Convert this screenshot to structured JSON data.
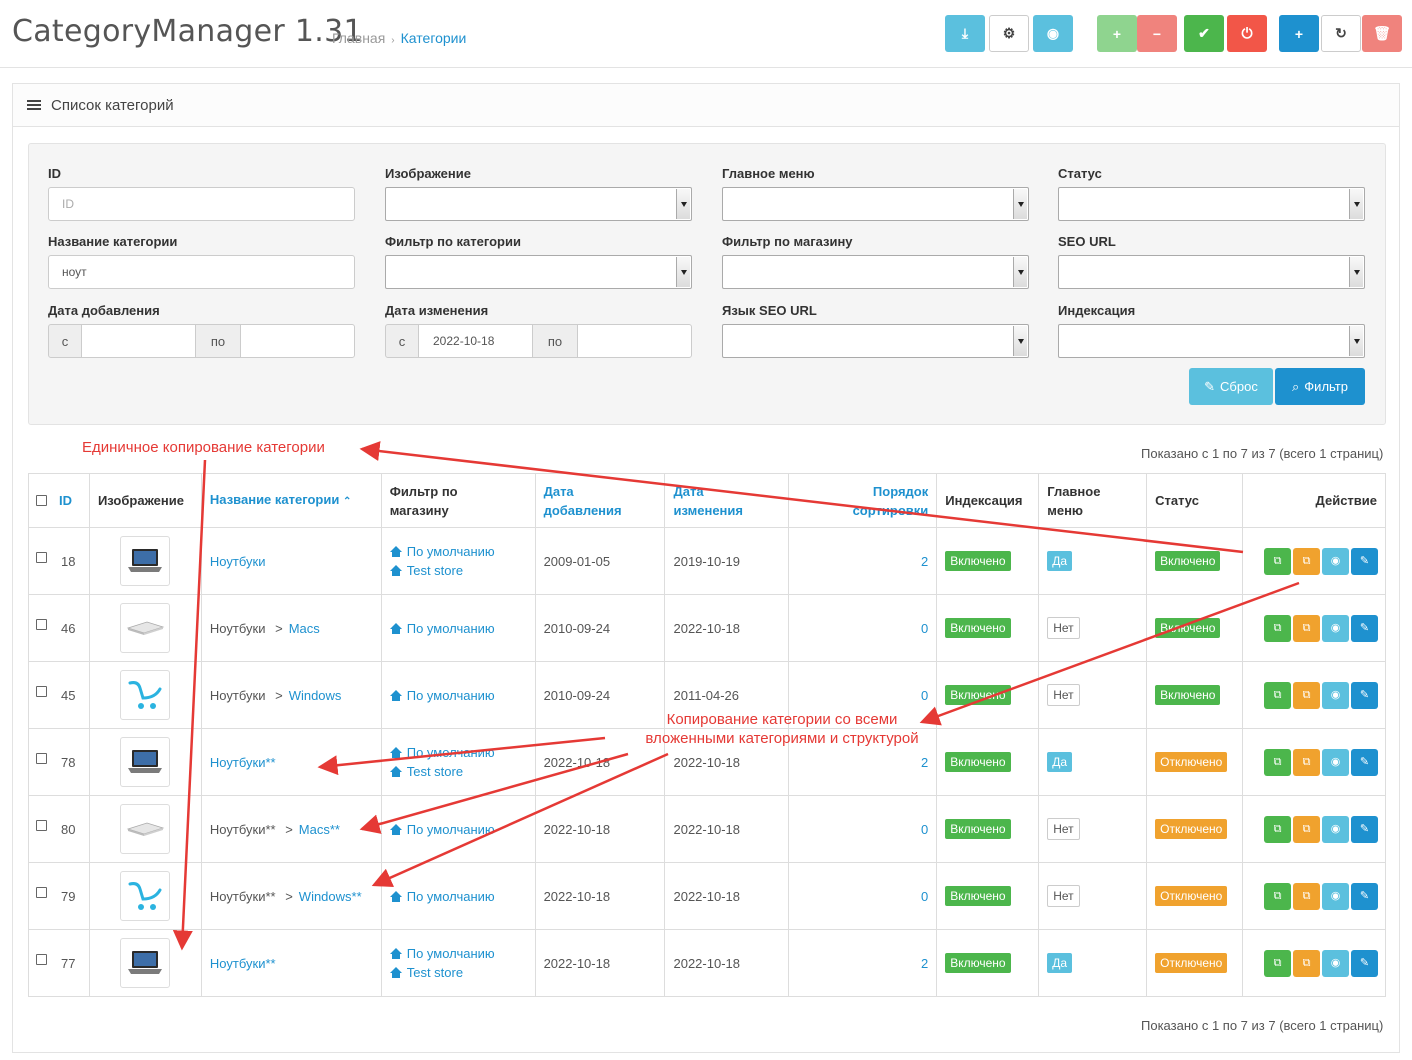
{
  "header": {
    "title": "CategoryManager 1.31",
    "breadcrumb": [
      "Главная",
      "Категории"
    ]
  },
  "toolbar": [
    {
      "name": "export-button",
      "icon": "download-icon",
      "glyph": "⤓",
      "color": "#5bc0de"
    },
    {
      "name": "settings-button",
      "icon": "cogs-icon",
      "glyph": "⚙",
      "color": "#ffffff"
    },
    {
      "name": "view-button",
      "icon": "eye-icon",
      "glyph": "◉",
      "color": "#5bc0de"
    },
    {
      "name": "enable-button",
      "icon": "plus-icon",
      "glyph": "+",
      "color": "#8fd48f"
    },
    {
      "name": "disable-button",
      "icon": "minus-icon",
      "glyph": "−",
      "color": "#f0837d"
    },
    {
      "name": "approve-button",
      "icon": "check-icon",
      "glyph": "✔",
      "color": "#4cb64c"
    },
    {
      "name": "power-button",
      "icon": "power-icon",
      "glyph": "⏻",
      "color": "#f25648"
    },
    {
      "name": "add-button",
      "icon": "plus-icon",
      "glyph": "+",
      "color": "#1e91cf"
    },
    {
      "name": "refresh-button",
      "icon": "refresh-icon",
      "glyph": "↻",
      "color": "#ffffff"
    },
    {
      "name": "delete-button",
      "icon": "trash-icon",
      "glyph": "🗑",
      "color": "#f0837d"
    }
  ],
  "panel": {
    "title": "Список категорий"
  },
  "filter": {
    "labels": {
      "id": "ID",
      "image": "Изображение",
      "main_menu": "Главное меню",
      "status": "Статус",
      "name": "Название категории",
      "category_filter": "Фильтр по категории",
      "store_filter": "Фильтр по магазину",
      "seo_url": "SEO URL",
      "date_added": "Дата добавления",
      "date_modified": "Дата изменения",
      "seo_lang": "Язык SEO URL",
      "indexing": "Индексация"
    },
    "id_placeholder": "ID",
    "name_value": "ноут",
    "from_label": "с",
    "to_label": "по",
    "date_modified_from": "2022-10-18",
    "reset_label": "Сброс",
    "filter_label": "Фильтр"
  },
  "pagination_text": "Показано с 1 по 7 из 7 (всего 1 страниц)",
  "table": {
    "headers": {
      "id": "ID",
      "image": "Изображение",
      "name": "Название категории",
      "store_line1": "Фильтр по",
      "store_line2": "магазину",
      "added_line1": "Дата",
      "added_line2": "добавления",
      "modified_line1": "Дата",
      "modified_line2": "изменения",
      "sort_line1": "Порядок",
      "sort_line2": "сортировки",
      "indexing": "Индексация",
      "menu_line1": "Главное",
      "menu_line2": "меню",
      "status": "Статус",
      "action": "Действие"
    },
    "rows": [
      {
        "id": "18",
        "image": "laptop",
        "parent": "",
        "name": "Ноутбуки",
        "stores": [
          "По умолчанию",
          "Test store"
        ],
        "added": "2009-01-05",
        "modified": "2019-10-19",
        "sort": "2",
        "indexing": "Включено",
        "menu": "Да",
        "status": "Включено"
      },
      {
        "id": "46",
        "image": "macbook",
        "parent": "Ноутбуки",
        "name": "Macs",
        "stores": [
          "По умолчанию"
        ],
        "added": "2010-09-24",
        "modified": "2022-10-18",
        "sort": "0",
        "indexing": "Включено",
        "menu": "Нет",
        "status": "Включено"
      },
      {
        "id": "45",
        "image": "cart",
        "parent": "Ноутбуки",
        "name": "Windows",
        "stores": [
          "По умолчанию"
        ],
        "added": "2010-09-24",
        "modified": "2011-04-26",
        "sort": "0",
        "indexing": "Включено",
        "menu": "Нет",
        "status": "Включено"
      },
      {
        "id": "78",
        "image": "laptop",
        "parent": "",
        "name": "Ноутбуки**",
        "stores": [
          "По умолчанию",
          "Test store"
        ],
        "added": "2022-10-18",
        "modified": "2022-10-18",
        "sort": "2",
        "indexing": "Включено",
        "menu": "Да",
        "status": "Отключено"
      },
      {
        "id": "80",
        "image": "macbook",
        "parent": "Ноутбуки**",
        "name": "Macs**",
        "stores": [
          "По умолчанию"
        ],
        "added": "2022-10-18",
        "modified": "2022-10-18",
        "sort": "0",
        "indexing": "Включено",
        "menu": "Нет",
        "status": "Отключено"
      },
      {
        "id": "79",
        "image": "cart",
        "parent": "Ноутбуки**",
        "name": "Windows**",
        "stores": [
          "По умолчанию"
        ],
        "added": "2022-10-18",
        "modified": "2022-10-18",
        "sort": "0",
        "indexing": "Включено",
        "menu": "Нет",
        "status": "Отключено"
      },
      {
        "id": "77",
        "image": "laptop",
        "parent": "",
        "name": "Ноутбуки**",
        "stores": [
          "По умолчанию",
          "Test store"
        ],
        "added": "2022-10-18",
        "modified": "2022-10-18",
        "sort": "2",
        "indexing": "Включено",
        "menu": "Да",
        "status": "Отключено"
      }
    ],
    "separator": ">"
  },
  "annotations": {
    "single_copy": "Единичное копирование категории",
    "tree_copy_line1": "Копирование категории со всеми",
    "tree_copy_line2": "вложенными категориями и структурой"
  },
  "colors": {
    "accent": "#1e91cf",
    "success": "#4cb64c",
    "warning": "#f0a22e",
    "info": "#5bc0de",
    "annotation": "#e53935"
  }
}
